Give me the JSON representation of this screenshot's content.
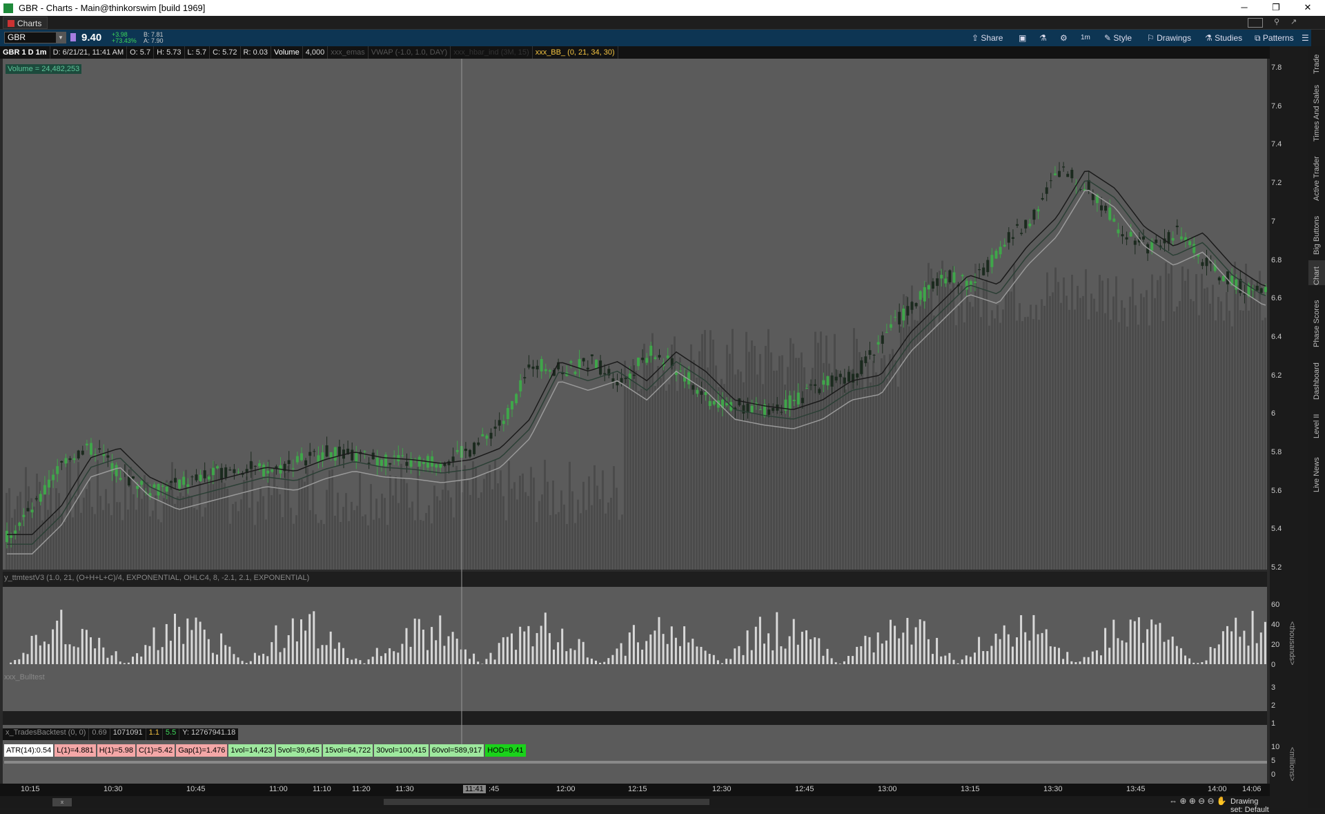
{
  "window": {
    "title": "GBR - Charts -  Main@thinkorswim [build 1969]",
    "tab_label": "Charts"
  },
  "toolbar": {
    "symbol": "GBR",
    "last_price": "9.40",
    "change": "+3.98",
    "change_pct": "+73.43%",
    "bid": "B: 7.81",
    "ask": "A: 7.90",
    "buttons": [
      "Share",
      "1m",
      "Style",
      "Drawings",
      "Studies",
      "Patterns"
    ]
  },
  "infobar": {
    "series": "GBR 1 D 1m",
    "date": "D: 6/21/21, 11:41 AM",
    "open": "O: 5.7",
    "high": "H: 5.73",
    "low": "L: 5.7",
    "close": "C: 5.72",
    "range": "R: 0.03",
    "volume_label": "Volume",
    "volume_value": "4,000",
    "study1": "xxx_emas",
    "study2": "VWAP (-1.0, 1.0, DAY)",
    "study3": "xxx_hbar_ind (3M, 15)",
    "study4": "xxx_BB_ (0, 21, 34, 30)"
  },
  "volume_badge": "Volume = 24,482,253",
  "panes": {
    "ttm": "y_ttmtestV3 (1.0, 21, (O+H+L+C)/4, EXPONENTIAL, OHLC4, 8, -2.1, 2.1, EXPONENTIAL)",
    "bull": "xxx_Bulltest",
    "trades_label": "x_TradesBacktest (0, 0)",
    "trades_vals": [
      "0.69",
      "1071091",
      "1.1",
      "5.5",
      "Y: 12767941.18"
    ],
    "thousands": "<thousands>",
    "millions": "<millions>"
  },
  "stats": [
    {
      "text": "ATR(14):0.54",
      "color": "#ffffff"
    },
    {
      "text": "L(1)=4.881",
      "color": "#f4a7a7"
    },
    {
      "text": "H(1)=5.98",
      "color": "#f4a7a7"
    },
    {
      "text": "C(1)=5.42",
      "color": "#f4a7a7"
    },
    {
      "text": "Gap(1)=1.476",
      "color": "#f4a7a7"
    },
    {
      "text": "1vol=14,423",
      "color": "#9ee89e"
    },
    {
      "text": "5vol=39,645",
      "color": "#9ee89e"
    },
    {
      "text": "15vol=64,722",
      "color": "#9ee89e"
    },
    {
      "text": "30vol=100,415",
      "color": "#9ee89e"
    },
    {
      "text": "60vol=589,917",
      "color": "#9ee89e"
    },
    {
      "text": "HOD=9.41",
      "color": "#1ad21a"
    }
  ],
  "right_tabs": [
    "Trade",
    "Times And Sales",
    "Active Trader",
    "Big Buttons",
    "Chart",
    "Phase Scores",
    "Dashboard",
    "Level II",
    "Live News"
  ],
  "price_axis": [
    "7.8",
    "7.6",
    "7.4",
    "7.2",
    "7",
    "6.8",
    "6.6",
    "6.4",
    "6.2",
    "6",
    "5.8",
    "5.6",
    "5.4",
    "5.2"
  ],
  "ttm_axis": [
    "60",
    "40",
    "20",
    "0"
  ],
  "bull_axis": [
    "3",
    "2",
    "1"
  ],
  "vol_axis": [
    "10",
    "5",
    "0"
  ],
  "time_axis": [
    "10:15",
    "10:30",
    "10:45",
    "11:00",
    "11:10",
    "11:20",
    "11:30",
    "11:41",
    ":45",
    "12:00",
    "12:15",
    "12:30",
    "12:45",
    "13:00",
    "13:15",
    "13:30",
    "13:45",
    "14:00",
    "14:06"
  ],
  "drawing_set": "Drawing set: Default",
  "colors": {
    "up": "#3fa64a",
    "down": "#1b2a1e",
    "bg": "#5b5b5b",
    "accent": "#0d3553"
  }
}
